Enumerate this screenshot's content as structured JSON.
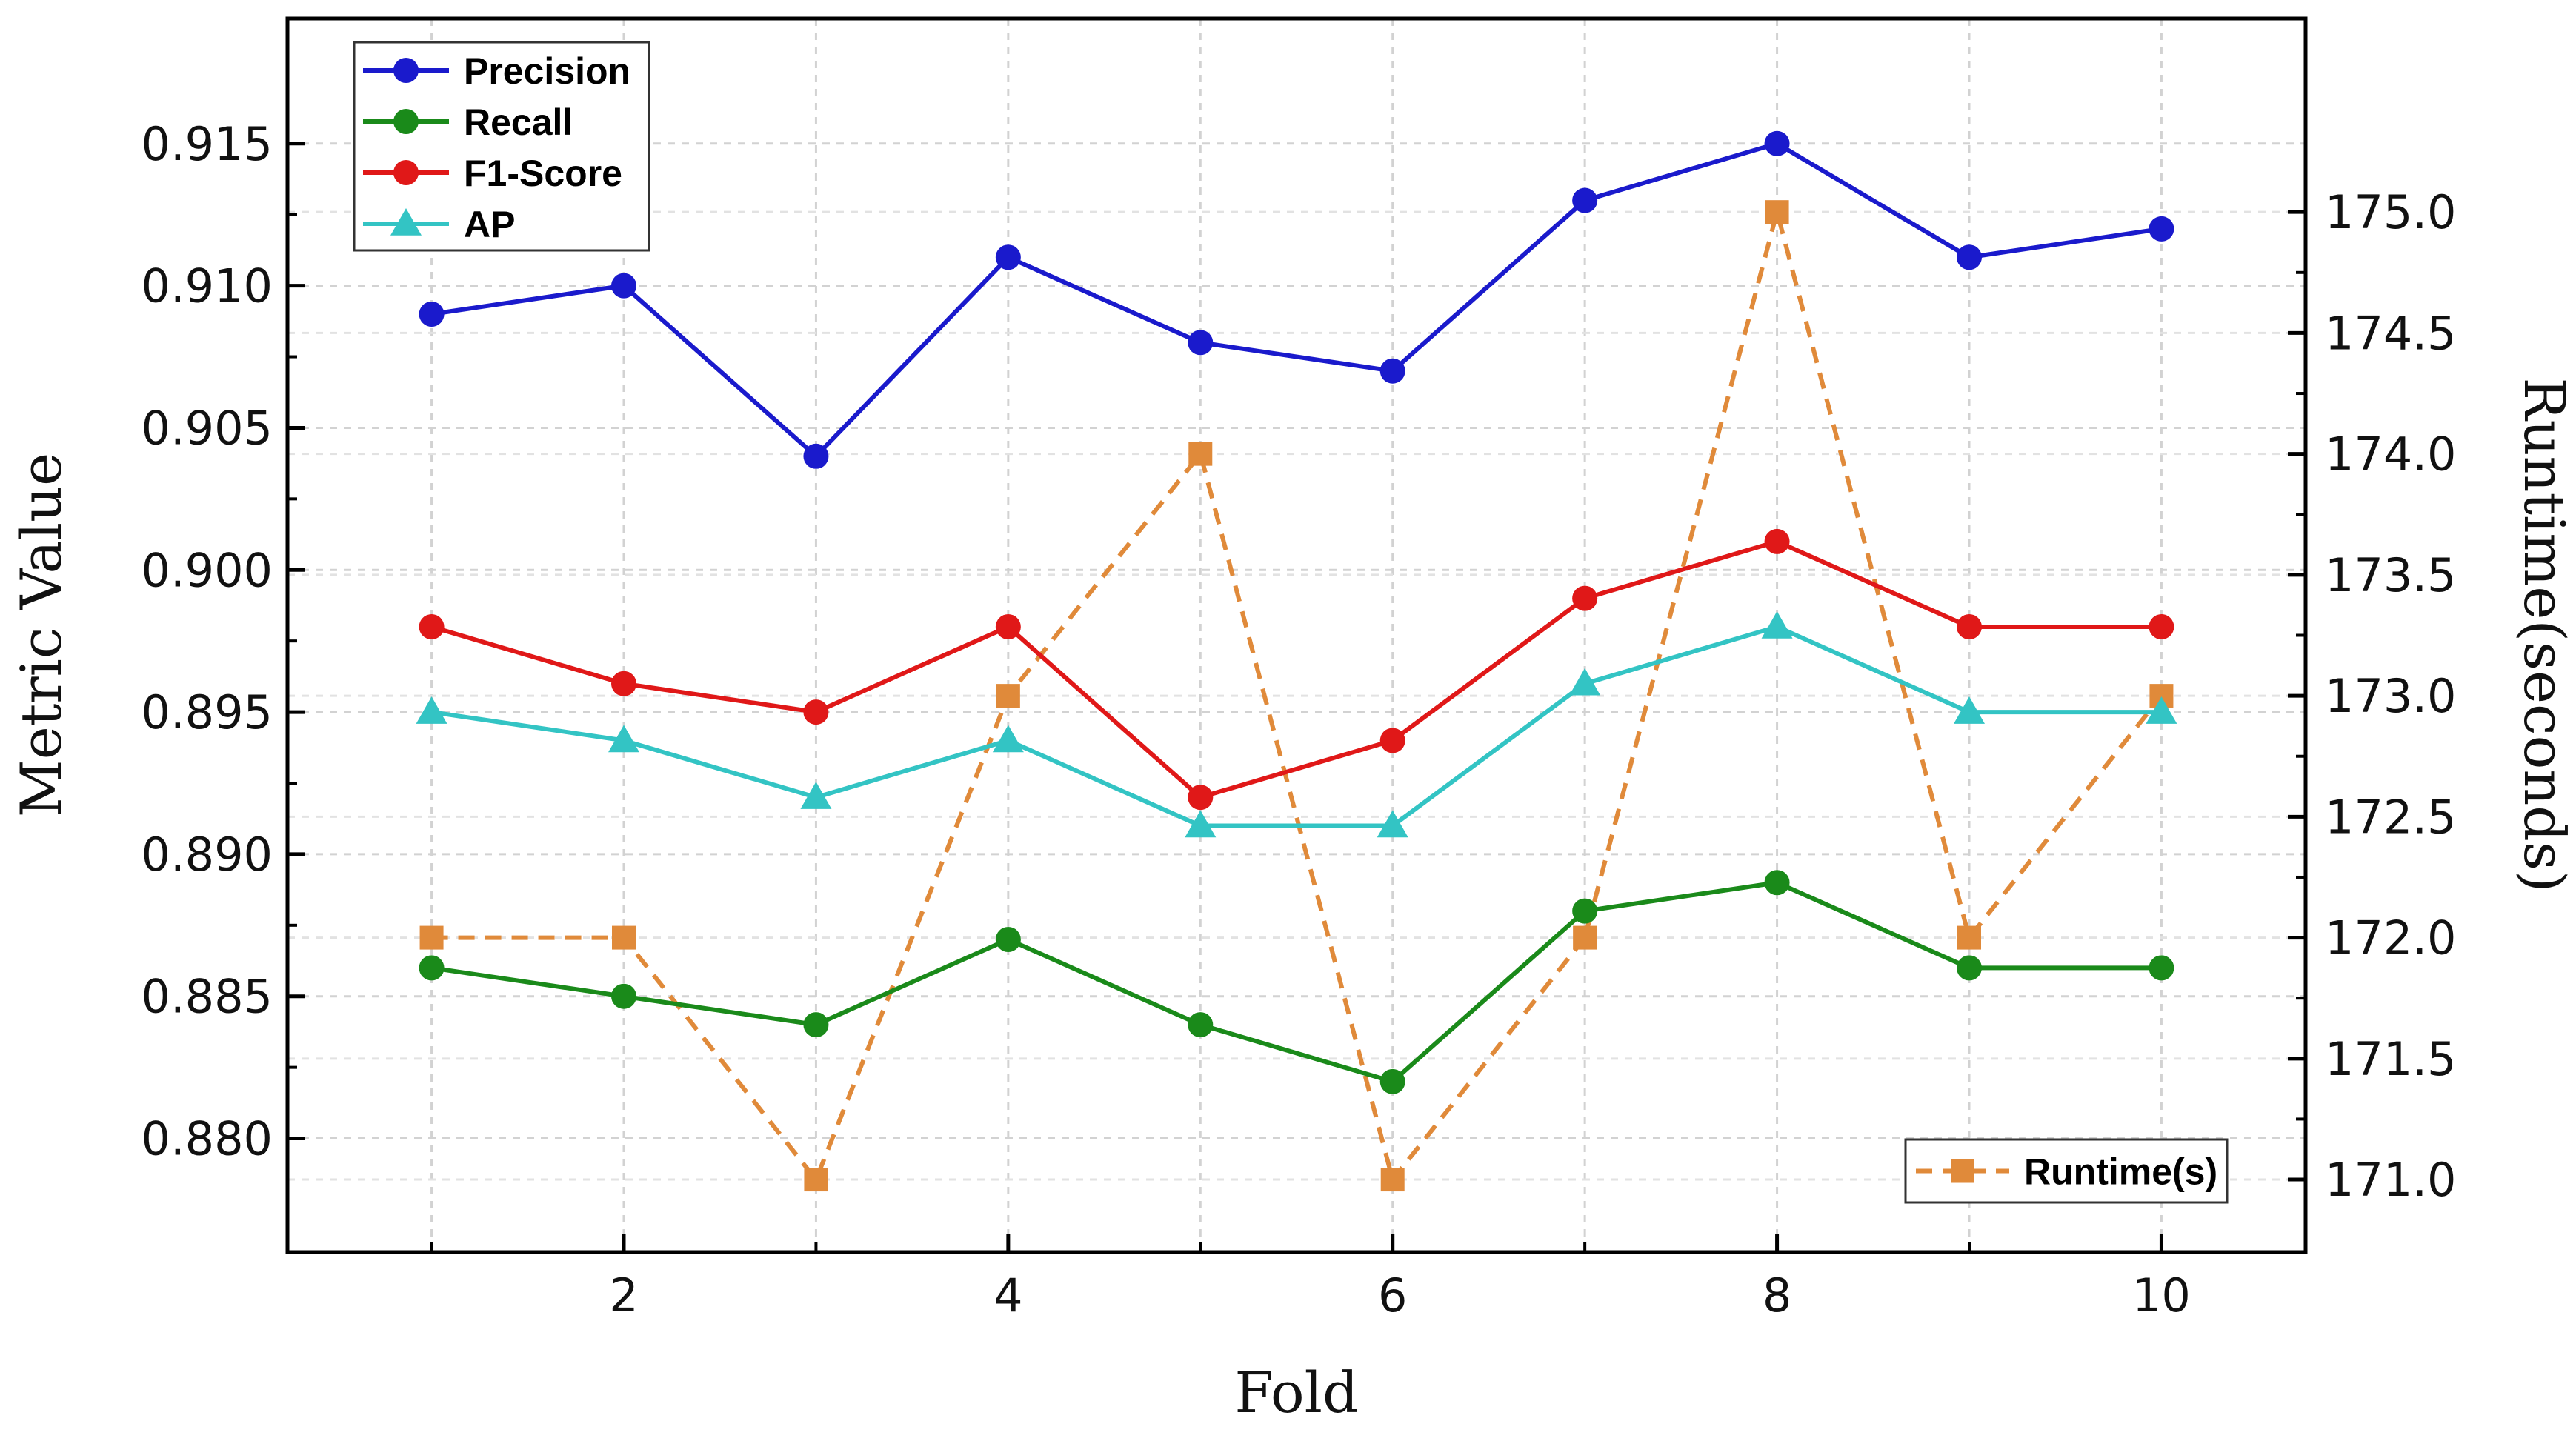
{
  "chart_data": {
    "type": "line",
    "x": [
      1,
      2,
      3,
      4,
      5,
      6,
      7,
      8,
      9,
      10
    ],
    "xlabel": "Fold",
    "ylabel": "Metric Value",
    "y2label": "Runtime(seconds)",
    "xlim": [
      0.25,
      10.75
    ],
    "ylim": [
      0.876,
      0.9194
    ],
    "y2lim": [
      170.7,
      175.8
    ],
    "xticks": [
      2,
      4,
      6,
      8,
      10
    ],
    "xtick_labels": [
      "2",
      "4",
      "6",
      "8",
      "10"
    ],
    "yticks": [
      0.88,
      0.885,
      0.89,
      0.895,
      0.9,
      0.905,
      0.91,
      0.915
    ],
    "ytick_labels": [
      "0.880",
      "0.885",
      "0.890",
      "0.895",
      "0.900",
      "0.905",
      "0.910",
      "0.915"
    ],
    "y2ticks": [
      171.0,
      171.5,
      172.0,
      172.5,
      173.0,
      173.5,
      174.0,
      174.5,
      175.0
    ],
    "y2tick_labels": [
      "171.0",
      "171.5",
      "172.0",
      "172.5",
      "173.0",
      "173.5",
      "174.0",
      "174.5",
      "175.0"
    ],
    "grid": true,
    "series": [
      {
        "name": "Precision",
        "axis": "left",
        "marker": "circle",
        "dashed": false,
        "color": "#1a1acc",
        "values": [
          0.909,
          0.91,
          0.904,
          0.911,
          0.908,
          0.907,
          0.913,
          0.915,
          0.911,
          0.912
        ]
      },
      {
        "name": "Recall",
        "axis": "left",
        "marker": "circle",
        "dashed": false,
        "color": "#1a8a1a",
        "values": [
          0.886,
          0.885,
          0.884,
          0.887,
          0.884,
          0.882,
          0.888,
          0.889,
          0.886,
          0.886
        ]
      },
      {
        "name": "F1-Score",
        "axis": "left",
        "marker": "circle",
        "dashed": false,
        "color": "#e01818",
        "values": [
          0.898,
          0.896,
          0.895,
          0.898,
          0.892,
          0.894,
          0.899,
          0.901,
          0.898,
          0.898
        ]
      },
      {
        "name": "AP",
        "axis": "left",
        "marker": "triangle",
        "dashed": false,
        "color": "#33c4c4",
        "values": [
          0.895,
          0.894,
          0.892,
          0.894,
          0.891,
          0.891,
          0.896,
          0.898,
          0.895,
          0.895
        ]
      },
      {
        "name": "Runtime(s)",
        "axis": "right",
        "marker": "square",
        "dashed": true,
        "color": "#e08a3a",
        "values": [
          172.0,
          172.0,
          171.0,
          173.0,
          174.0,
          171.0,
          172.0,
          175.0,
          172.0,
          173.0
        ]
      }
    ],
    "legend_left": [
      "Precision",
      "Recall",
      "F1-Score",
      "AP"
    ],
    "legend_right": [
      "Runtime(s)"
    ],
    "legend_left_position": "top-left",
    "legend_right_position": "bottom-right"
  }
}
